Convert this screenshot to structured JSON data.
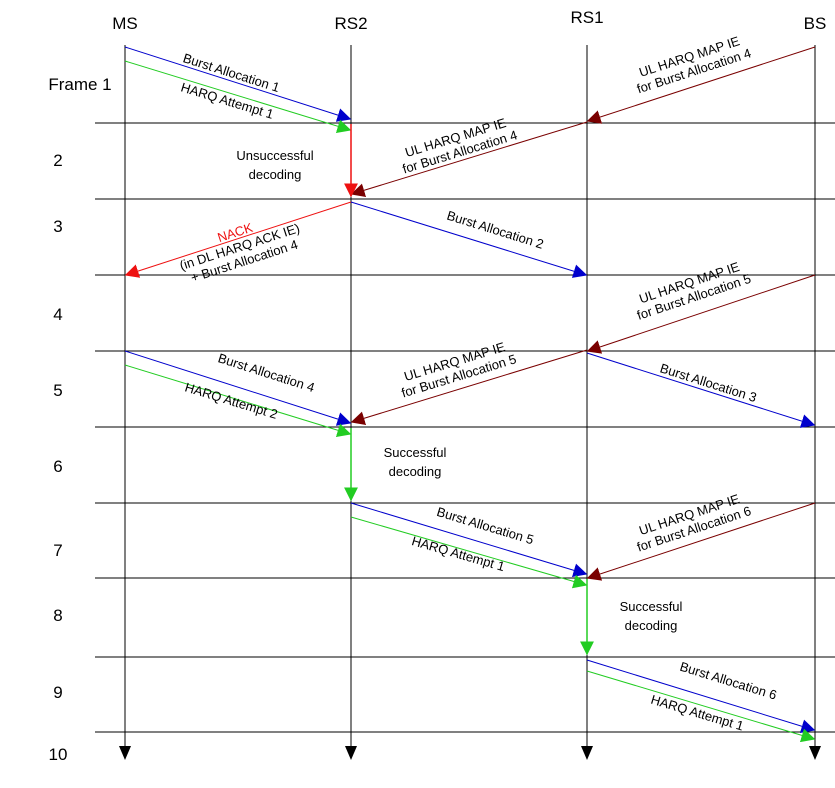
{
  "colors": {
    "blue": "#0000cc",
    "green": "#22cc22",
    "darkred": "#7a0000",
    "red": "#ee1111",
    "black": "#000000"
  },
  "nodes": [
    {
      "key": "ms",
      "label": "MS"
    },
    {
      "key": "rs2",
      "label": "RS2"
    },
    {
      "key": "rs1",
      "label": "RS1"
    },
    {
      "key": "bs",
      "label": "BS"
    }
  ],
  "frames": [
    "Frame 1",
    "2",
    "3",
    "4",
    "5",
    "6",
    "7",
    "8",
    "9",
    "10"
  ],
  "messages": [
    {
      "id": "burst-allocation-1",
      "from": "ms",
      "to": "rs2",
      "frame": 1,
      "color": "blue",
      "lines": [
        "Burst Allocation 1"
      ]
    },
    {
      "id": "harq-attempt-1-ms",
      "from": "ms",
      "to": "rs2",
      "frame": 1,
      "color": "green",
      "lines": [
        "HARQ Attempt 1"
      ]
    },
    {
      "id": "ul-harq-map-ie-burst-4-bs",
      "from": "bs",
      "to": "rs1",
      "frame": 1,
      "color": "darkred",
      "lines": [
        "UL HARQ MAP IE",
        "for Burst Allocation 4"
      ]
    },
    {
      "id": "ul-harq-map-ie-burst-4-rs1",
      "from": "rs1",
      "to": "rs2",
      "frame": 2,
      "color": "darkred",
      "lines": [
        "UL HARQ MAP IE",
        "for Burst Allocation 4"
      ]
    },
    {
      "id": "nack",
      "from": "rs2",
      "to": "ms",
      "frame": 3,
      "color": "red",
      "lines": [
        "NACK",
        "(in DL HARQ ACK IE)",
        "+ Burst Allocation 4"
      ]
    },
    {
      "id": "burst-allocation-2",
      "from": "rs2",
      "to": "rs1",
      "frame": 3,
      "color": "blue",
      "lines": [
        "Burst Allocation 2"
      ]
    },
    {
      "id": "ul-harq-map-ie-burst-5-bs",
      "from": "bs",
      "to": "rs1",
      "frame": 4,
      "color": "darkred",
      "lines": [
        "UL HARQ MAP IE",
        "for Burst Allocation 5"
      ]
    },
    {
      "id": "burst-allocation-4",
      "from": "ms",
      "to": "rs2",
      "frame": 5,
      "color": "blue",
      "lines": [
        "Burst Allocation 4"
      ]
    },
    {
      "id": "harq-attempt-2",
      "from": "ms",
      "to": "rs2",
      "frame": 5,
      "color": "green",
      "lines": [
        "HARQ Attempt 2"
      ]
    },
    {
      "id": "ul-harq-map-ie-burst-5-rs1",
      "from": "rs1",
      "to": "rs2",
      "frame": 5,
      "color": "darkred",
      "lines": [
        "UL HARQ MAP IE",
        "for Burst Allocation 5"
      ]
    },
    {
      "id": "burst-allocation-3",
      "from": "rs1",
      "to": "bs",
      "frame": 5,
      "color": "blue",
      "lines": [
        "Burst Allocation 3"
      ]
    },
    {
      "id": "burst-allocation-5",
      "from": "rs2",
      "to": "rs1",
      "frame": 7,
      "color": "blue",
      "lines": [
        "Burst Allocation 5"
      ]
    },
    {
      "id": "harq-attempt-1-rs2",
      "from": "rs2",
      "to": "rs1",
      "frame": 7,
      "color": "green",
      "lines": [
        "HARQ Attempt 1"
      ]
    },
    {
      "id": "ul-harq-map-ie-burst-6-bs",
      "from": "bs",
      "to": "rs1",
      "frame": 7,
      "color": "darkred",
      "lines": [
        "UL HARQ MAP IE",
        "for Burst Allocation 6"
      ]
    },
    {
      "id": "burst-allocation-6",
      "from": "rs1",
      "to": "bs",
      "frame": 9,
      "color": "blue",
      "lines": [
        "Burst Allocation 6"
      ]
    },
    {
      "id": "harq-attempt-1-rs1",
      "from": "rs1",
      "to": "bs",
      "frame": 9,
      "color": "green",
      "lines": [
        "HARQ Attempt 1"
      ]
    }
  ],
  "notes": [
    {
      "id": "unsuccessful-decoding",
      "node": "rs2",
      "frame": 2,
      "color": "red",
      "lines": [
        "Unsuccessful",
        "decoding"
      ]
    },
    {
      "id": "successful-decoding-rs2",
      "node": "rs2",
      "frame": 6,
      "color": "green",
      "lines": [
        "Successful",
        "decoding"
      ]
    },
    {
      "id": "successful-decoding-rs1",
      "node": "rs1",
      "frame": 8,
      "color": "green",
      "lines": [
        "Successful",
        "decoding"
      ]
    }
  ]
}
